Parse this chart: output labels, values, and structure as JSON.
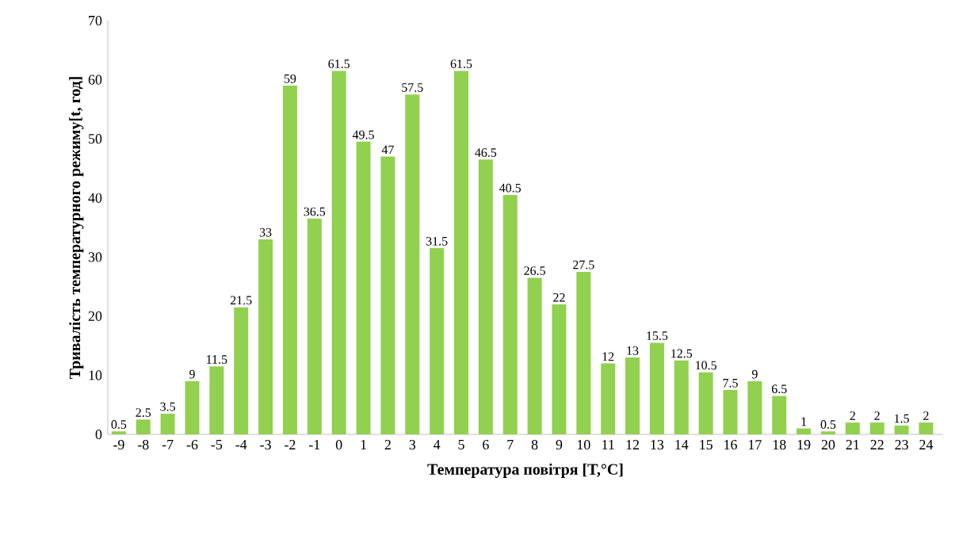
{
  "chart_data": {
    "type": "bar",
    "xlabel": "Температура повітря [T,°C]",
    "ylabel": "Тривалість температурного режиму[t, год]",
    "categories": [
      "-9",
      "-8",
      "-7",
      "-6",
      "-5",
      "-4",
      "-3",
      "-2",
      "-1",
      "0",
      "1",
      "2",
      "3",
      "4",
      "5",
      "6",
      "7",
      "8",
      "9",
      "10",
      "11",
      "12",
      "13",
      "14",
      "15",
      "16",
      "17",
      "18",
      "19",
      "20",
      "21",
      "22",
      "23",
      "24"
    ],
    "values": [
      0.5,
      2.5,
      3.5,
      9,
      11.5,
      21.5,
      33,
      59,
      36.5,
      61.5,
      49.5,
      47,
      57.5,
      31.5,
      61.5,
      46.5,
      40.5,
      26.5,
      22,
      27.5,
      12,
      13,
      15.5,
      12.5,
      10.5,
      7.5,
      9,
      6.5,
      1,
      0.5,
      2,
      2,
      1.5,
      2
    ],
    "color": "#92d050",
    "ylim": [
      0,
      70
    ],
    "yticks": [
      0,
      10,
      20,
      30,
      40,
      50,
      60,
      70
    ],
    "data_labels": true
  }
}
